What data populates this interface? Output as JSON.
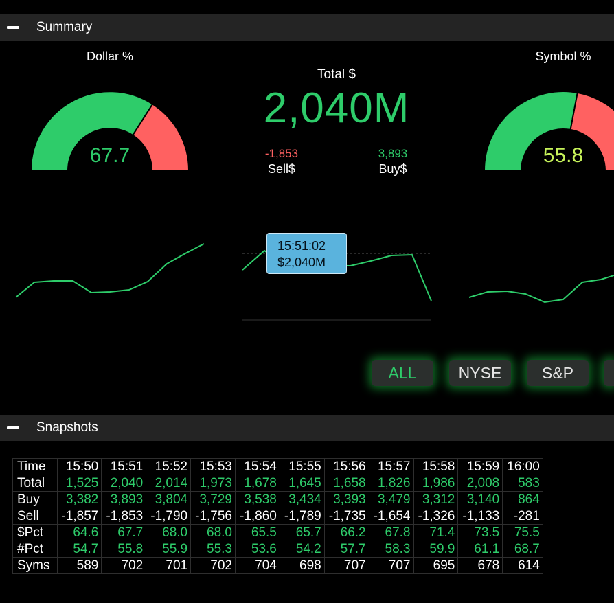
{
  "summary": {
    "section_title": "Summary",
    "dollar_gauge": {
      "title": "Dollar %",
      "value": "67.7",
      "fraction": 0.677
    },
    "symbol_gauge": {
      "title": "Symbol %",
      "value": "55.8",
      "fraction": 0.558
    },
    "total": {
      "label": "Total $",
      "value": "2,040M"
    },
    "sell": {
      "value": "-1,853",
      "label": "Sell$"
    },
    "buy": {
      "value": "3,893",
      "label": "Buy$"
    },
    "tooltip": {
      "time": "15:51:02",
      "value": "$2,040M"
    },
    "tabs": [
      {
        "label": "ALL",
        "active": true
      },
      {
        "label": "NYSE",
        "active": false
      },
      {
        "label": "S&P",
        "active": false
      }
    ],
    "colors": {
      "green": "#2ecc6a",
      "red": "#ff6161",
      "yellow_green": "#c6f25a",
      "tooltip": "#5ab3dd"
    }
  },
  "snapshots": {
    "section_title": "Snapshots",
    "header": {
      "label": "Time",
      "times": [
        "15:50",
        "15:51",
        "15:52",
        "15:53",
        "15:54",
        "15:55",
        "15:56",
        "15:57",
        "15:58",
        "15:59",
        "16:00"
      ]
    },
    "rows": [
      {
        "label": "Total",
        "values": [
          "1,525",
          "2,040",
          "2,014",
          "1,973",
          "1,678",
          "1,645",
          "1,658",
          "1,826",
          "1,986",
          "2,008",
          "583"
        ]
      },
      {
        "label": "Buy",
        "values": [
          "3,382",
          "3,893",
          "3,804",
          "3,729",
          "3,538",
          "3,434",
          "3,393",
          "3,479",
          "3,312",
          "3,140",
          "864"
        ]
      },
      {
        "label": "Sell",
        "values": [
          "-1,857",
          "-1,853",
          "-1,790",
          "-1,756",
          "-1,860",
          "-1,789",
          "-1,735",
          "-1,654",
          "-1,326",
          "-1,133",
          "-281"
        ]
      },
      {
        "label": "$Pct",
        "values": [
          "64.6",
          "67.7",
          "68.0",
          "68.0",
          "65.5",
          "65.7",
          "66.2",
          "67.8",
          "71.4",
          "73.5",
          "75.5"
        ]
      },
      {
        "label": "#Pct",
        "values": [
          "54.7",
          "55.8",
          "55.9",
          "55.3",
          "53.6",
          "54.2",
          "57.7",
          "58.3",
          "59.9",
          "61.1",
          "68.7"
        ]
      },
      {
        "label": "Syms",
        "values": [
          "589",
          "702",
          "701",
          "702",
          "704",
          "698",
          "707",
          "707",
          "695",
          "678",
          "614"
        ]
      }
    ]
  }
}
